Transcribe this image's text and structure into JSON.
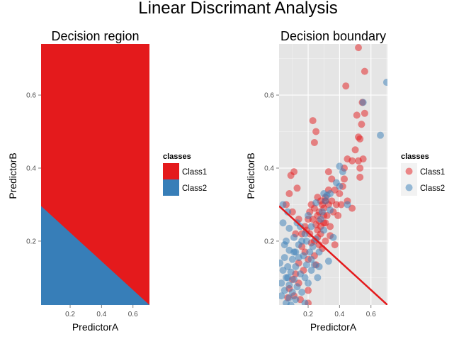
{
  "title": "Linear Discrimant Analysis",
  "colors": {
    "class1": "#E41A1C",
    "class2": "#377EB8",
    "panel_bg": "#E5E5E5",
    "grid": "#FFFFFF",
    "boundary": "#E41A1C"
  },
  "chart_data": [
    {
      "type": "area",
      "title": "Decision region",
      "xlabel": "PredictorA",
      "ylabel": "PredictorB",
      "xlim": [
        0.015,
        0.705
      ],
      "ylim": [
        0.025,
        0.74
      ],
      "xticks": [
        "0.2",
        "0.4",
        "0.6"
      ],
      "yticks": [
        "0.2",
        "0.4",
        "0.6"
      ],
      "xtick_values": [
        0.2,
        0.4,
        0.6
      ],
      "ytick_values": [
        0.2,
        0.4,
        0.6
      ],
      "legend_title": "classes",
      "legend_position": "right",
      "legend": [
        "Class1",
        "Class2"
      ],
      "boundary_line": {
        "x": [
          0.015,
          0.705
        ],
        "y": [
          0.296,
          0.025
        ]
      },
      "regions": [
        {
          "name": "Class1",
          "side": "above boundary"
        },
        {
          "name": "Class2",
          "side": "below boundary"
        }
      ],
      "grid": false
    },
    {
      "type": "scatter",
      "title": "Decision boundary",
      "xlabel": "PredictorA",
      "ylabel": "PredictorB",
      "xlim": [
        0.015,
        0.705
      ],
      "ylim": [
        0.025,
        0.74
      ],
      "xticks": [
        "0.2",
        "0.4",
        "0.6"
      ],
      "yticks": [
        "0.2",
        "0.4",
        "0.6"
      ],
      "xtick_values": [
        0.2,
        0.4,
        0.6
      ],
      "ytick_values": [
        0.2,
        0.4,
        0.6
      ],
      "legend_title": "classes",
      "legend_position": "right",
      "legend": [
        "Class1",
        "Class2"
      ],
      "grid": true,
      "boundary_line": {
        "x": [
          0.015,
          0.705
        ],
        "y": [
          0.296,
          0.025
        ]
      },
      "series": [
        {
          "name": "Class1",
          "points": [
            [
              0.52,
              0.73
            ],
            [
              0.56,
              0.665
            ],
            [
              0.44,
              0.625
            ],
            [
              0.545,
              0.58
            ],
            [
              0.56,
              0.55
            ],
            [
              0.51,
              0.545
            ],
            [
              0.54,
              0.52
            ],
            [
              0.23,
              0.53
            ],
            [
              0.25,
              0.5
            ],
            [
              0.52,
              0.485
            ],
            [
              0.53,
              0.48
            ],
            [
              0.24,
              0.47
            ],
            [
              0.5,
              0.45
            ],
            [
              0.55,
              0.425
            ],
            [
              0.45,
              0.425
            ],
            [
              0.52,
              0.42
            ],
            [
              0.48,
              0.42
            ],
            [
              0.53,
              0.4
            ],
            [
              0.11,
              0.39
            ],
            [
              0.09,
              0.38
            ],
            [
              0.33,
              0.39
            ],
            [
              0.43,
              0.4
            ],
            [
              0.53,
              0.375
            ],
            [
              0.43,
              0.37
            ],
            [
              0.13,
              0.345
            ],
            [
              0.42,
              0.35
            ],
            [
              0.37,
              0.34
            ],
            [
              0.08,
              0.33
            ],
            [
              0.4,
              0.33
            ],
            [
              0.31,
              0.32
            ],
            [
              0.45,
              0.31
            ],
            [
              0.35,
              0.31
            ],
            [
              0.28,
              0.31
            ],
            [
              0.41,
              0.3
            ],
            [
              0.33,
              0.3
            ],
            [
              0.24,
              0.29
            ],
            [
              0.3,
              0.29
            ],
            [
              0.48,
              0.29
            ],
            [
              0.27,
              0.28
            ],
            [
              0.21,
              0.28
            ],
            [
              0.3,
              0.27
            ],
            [
              0.32,
              0.27
            ],
            [
              0.36,
              0.28
            ],
            [
              0.39,
              0.27
            ],
            [
              0.2,
              0.26
            ],
            [
              0.27,
              0.255
            ],
            [
              0.31,
              0.25
            ],
            [
              0.25,
              0.245
            ],
            [
              0.28,
              0.24
            ],
            [
              0.3,
              0.25
            ],
            [
              0.34,
              0.24
            ],
            [
              0.26,
              0.23
            ],
            [
              0.19,
              0.23
            ],
            [
              0.16,
              0.22
            ],
            [
              0.21,
              0.22
            ],
            [
              0.28,
              0.22
            ],
            [
              0.34,
              0.215
            ],
            [
              0.26,
              0.21
            ],
            [
              0.31,
              0.2
            ],
            [
              0.22,
              0.195
            ],
            [
              0.27,
              0.19
            ],
            [
              0.37,
              0.19
            ],
            [
              0.16,
              0.185
            ],
            [
              0.29,
              0.18
            ],
            [
              0.18,
              0.17
            ],
            [
              0.24,
              0.16
            ],
            [
              0.2,
              0.15
            ],
            [
              0.14,
              0.14
            ],
            [
              0.25,
              0.135
            ],
            [
              0.17,
              0.12
            ],
            [
              0.12,
              0.11
            ],
            [
              0.1,
              0.095
            ],
            [
              0.14,
              0.085
            ],
            [
              0.08,
              0.07
            ],
            [
              0.2,
              0.065
            ],
            [
              0.11,
              0.05
            ],
            [
              0.07,
              0.045
            ],
            [
              0.15,
              0.04
            ],
            [
              0.2,
              0.03
            ],
            [
              0.22,
              0.3
            ],
            [
              0.29,
              0.3
            ],
            [
              0.31,
              0.31
            ],
            [
              0.26,
              0.27
            ],
            [
              0.23,
              0.26
            ],
            [
              0.38,
              0.3
            ],
            [
              0.18,
              0.24
            ],
            [
              0.14,
              0.26
            ],
            [
              0.1,
              0.28
            ],
            [
              0.06,
              0.3
            ],
            [
              0.12,
              0.22
            ],
            [
              0.33,
              0.34
            ],
            [
              0.26,
              0.32
            ],
            [
              0.35,
              0.37
            ],
            [
              0.24,
              0.2
            ]
          ]
        },
        {
          "name": "Class2",
          "points": [
            [
              0.7,
              0.635
            ],
            [
              0.55,
              0.58
            ],
            [
              0.66,
              0.49
            ],
            [
              0.4,
              0.405
            ],
            [
              0.42,
              0.39
            ],
            [
              0.38,
              0.36
            ],
            [
              0.4,
              0.35
            ],
            [
              0.34,
              0.33
            ],
            [
              0.3,
              0.33
            ],
            [
              0.32,
              0.325
            ],
            [
              0.31,
              0.31
            ],
            [
              0.25,
              0.305
            ],
            [
              0.04,
              0.3
            ],
            [
              0.45,
              0.3
            ],
            [
              0.07,
              0.28
            ],
            [
              0.29,
              0.28
            ],
            [
              0.34,
              0.285
            ],
            [
              0.2,
              0.27
            ],
            [
              0.28,
              0.26
            ],
            [
              0.13,
              0.25
            ],
            [
              0.08,
              0.235
            ],
            [
              0.15,
              0.24
            ],
            [
              0.22,
              0.24
            ],
            [
              0.3,
              0.23
            ],
            [
              0.18,
              0.22
            ],
            [
              0.11,
              0.21
            ],
            [
              0.25,
              0.205
            ],
            [
              0.06,
              0.2
            ],
            [
              0.19,
              0.2
            ],
            [
              0.36,
              0.21
            ],
            [
              0.05,
              0.19
            ],
            [
              0.14,
              0.19
            ],
            [
              0.23,
              0.185
            ],
            [
              0.08,
              0.175
            ],
            [
              0.12,
              0.17
            ],
            [
              0.17,
              0.16
            ],
            [
              0.21,
              0.17
            ],
            [
              0.27,
              0.17
            ],
            [
              0.05,
              0.155
            ],
            [
              0.1,
              0.15
            ],
            [
              0.14,
              0.155
            ],
            [
              0.22,
              0.15
            ],
            [
              0.33,
              0.145
            ],
            [
              0.07,
              0.13
            ],
            [
              0.12,
              0.13
            ],
            [
              0.19,
              0.135
            ],
            [
              0.04,
              0.12
            ],
            [
              0.09,
              0.115
            ],
            [
              0.15,
              0.11
            ],
            [
              0.22,
              0.12
            ],
            [
              0.06,
              0.1
            ],
            [
              0.11,
              0.095
            ],
            [
              0.18,
              0.1
            ],
            [
              0.03,
              0.085
            ],
            [
              0.08,
              0.08
            ],
            [
              0.13,
              0.075
            ],
            [
              0.05,
              0.065
            ],
            [
              0.1,
              0.06
            ],
            [
              0.16,
              0.06
            ],
            [
              0.03,
              0.05
            ],
            [
              0.08,
              0.045
            ],
            [
              0.12,
              0.04
            ],
            [
              0.06,
              0.03
            ],
            [
              0.18,
              0.03
            ],
            [
              0.09,
              0.025
            ],
            [
              0.24,
              0.135
            ],
            [
              0.27,
              0.13
            ],
            [
              0.02,
              0.14
            ],
            [
              0.16,
              0.2
            ],
            [
              0.26,
              0.1
            ],
            [
              0.2,
              0.085
            ],
            [
              0.04,
              0.25
            ],
            [
              0.11,
              0.17
            ],
            [
              0.07,
              0.1
            ]
          ]
        }
      ]
    }
  ]
}
